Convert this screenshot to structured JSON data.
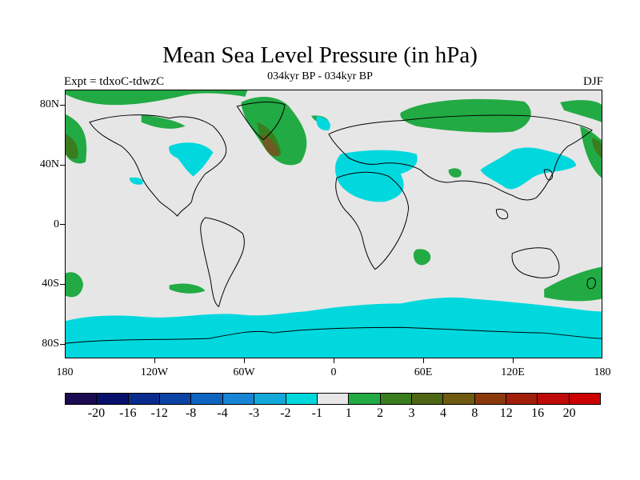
{
  "title": "Mean Sea Level Pressure (in hPa)",
  "subtitle": "034kyr BP - 034kyr BP",
  "left_label": "Expt = tdxoC-tdwzC",
  "right_label": "DJF",
  "map": {
    "projection": "cylindrical equidistant",
    "lon_range": [
      -180,
      180
    ],
    "lat_range": [
      -90,
      90
    ],
    "lat_ticks": [
      {
        "lat": 80,
        "label": "80N"
      },
      {
        "lat": 40,
        "label": "40N"
      },
      {
        "lat": 0,
        "label": "0"
      },
      {
        "lat": -40,
        "label": "40S"
      },
      {
        "lat": -80,
        "label": "80S"
      }
    ],
    "lon_ticks": [
      {
        "lon": -180,
        "label": "180"
      },
      {
        "lon": -120,
        "label": "120W"
      },
      {
        "lon": -60,
        "label": "60W"
      },
      {
        "lon": 0,
        "label": "0"
      },
      {
        "lon": 60,
        "label": "60E"
      },
      {
        "lon": 120,
        "label": "120E"
      },
      {
        "lon": 180,
        "label": "180"
      }
    ],
    "background_color": "#e6e6e6",
    "colors": {
      "neg_light": "#00d8de",
      "pos_light": "#22aa44",
      "pos_mid": "#3a7d1e",
      "pos_dark": "#6e5a22",
      "coast": "#000000"
    }
  },
  "colorbar": {
    "colors": [
      "#1a0a50",
      "#08106e",
      "#0a2b8c",
      "#0b44a4",
      "#0f64c0",
      "#1a84d4",
      "#14a8d8",
      "#00d8de",
      "#e6e6e6",
      "#22aa44",
      "#3a7d1e",
      "#4f6614",
      "#6e5a10",
      "#8a3a0a",
      "#a01e0a",
      "#c00a0a",
      "#cc0000"
    ],
    "labels": [
      "-20",
      "-16",
      "-12",
      "-8",
      "-4",
      "-3",
      "-2",
      "-1",
      "1",
      "2",
      "3",
      "4",
      "8",
      "12",
      "16",
      "20"
    ]
  }
}
